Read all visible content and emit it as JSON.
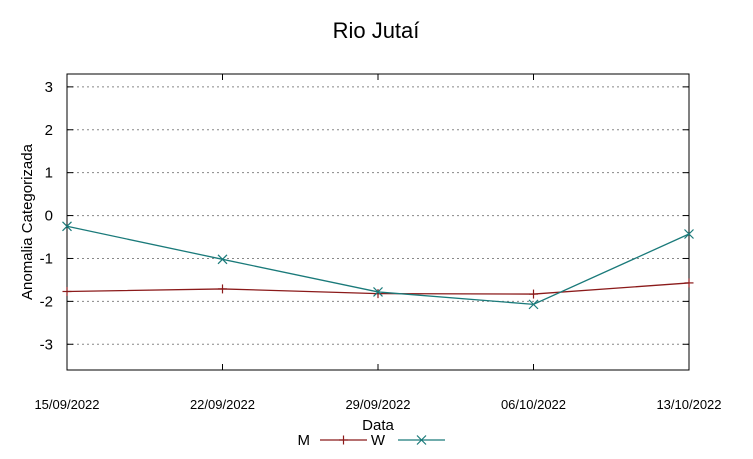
{
  "chart_data": {
    "type": "line",
    "title": "Rio Jutaí",
    "xlabel": "Data",
    "ylabel": "Anomalia Categorizada",
    "categories": [
      "15/09/2022",
      "22/09/2022",
      "29/09/2022",
      "06/10/2022",
      "13/10/2022"
    ],
    "ylim": [
      -3.6,
      3.3
    ],
    "yticks": [
      3,
      2,
      1,
      0,
      -1,
      -2,
      -3
    ],
    "ytick_labels": [
      "3",
      "2",
      "1",
      "0",
      "-1",
      "-2",
      "-3"
    ],
    "grid": "horizontal dotted",
    "legend_position": "bottom",
    "series": [
      {
        "name": "M",
        "color": "#8b1a1a",
        "marker": "plus",
        "values": [
          -1.77,
          -1.71,
          -1.82,
          -1.83,
          -1.57
        ]
      },
      {
        "name": "W",
        "color": "#1a7a7a",
        "marker": "cross",
        "values": [
          -0.25,
          -1.02,
          -1.78,
          -2.07,
          -0.43
        ]
      }
    ]
  }
}
